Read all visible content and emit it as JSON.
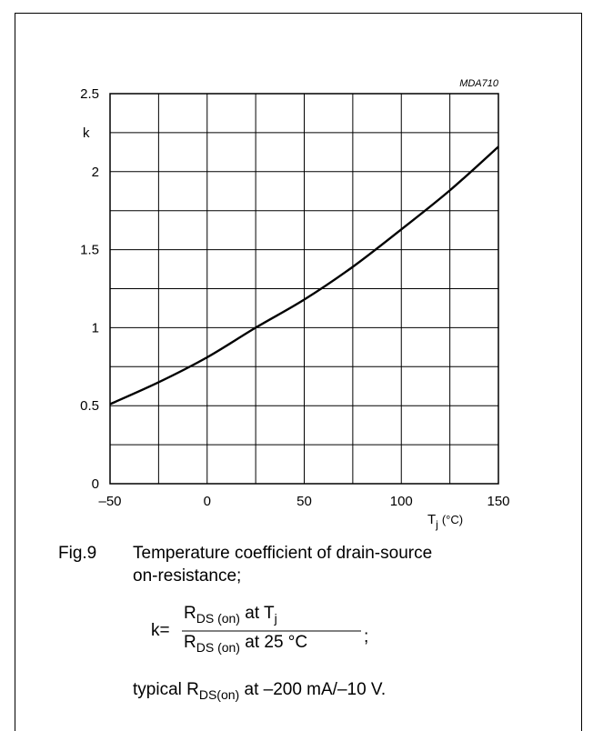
{
  "chart_data": {
    "type": "line",
    "figure_code": "MDA710",
    "ylabel": "k",
    "xlabel": {
      "main": "T",
      "sub": "j",
      "unit": "(°C)"
    },
    "xlim": [
      -50,
      150
    ],
    "ylim": [
      0,
      2.5
    ],
    "x_ticks": [
      -50,
      0,
      50,
      100,
      150
    ],
    "x_tick_labels": [
      "–50",
      "0",
      "50",
      "100",
      "150"
    ],
    "y_ticks": [
      0,
      0.5,
      1,
      1.5,
      2,
      2.5
    ],
    "y_tick_labels": [
      "0",
      "0.5",
      "1",
      "1.5",
      "2",
      "2.5"
    ],
    "grid": true,
    "x_grid_step": 25,
    "y_grid_step": 0.25,
    "series": [
      {
        "x": [
          -50,
          -25,
          0,
          25,
          50,
          75,
          100,
          125,
          150
        ],
        "y": [
          0.51,
          0.65,
          0.81,
          1.0,
          1.18,
          1.39,
          1.63,
          1.88,
          2.16
        ]
      }
    ]
  },
  "caption": {
    "fig_label": "Fig.9",
    "title_line1": "Temperature coefficient of drain-source",
    "title_line2": "on-resistance;",
    "formula": {
      "lhs": "k=",
      "num_R": "R",
      "num_sub": "DS (on)",
      "num_at": "at T",
      "num_at_sub": "j",
      "den_R": "R",
      "den_sub": "DS (on)",
      "den_at": "at 25 °C",
      "tail": ";"
    },
    "note": {
      "pre": "typical R",
      "sub": "DS(on)",
      "post": "at –200 mA/–10 V."
    }
  }
}
